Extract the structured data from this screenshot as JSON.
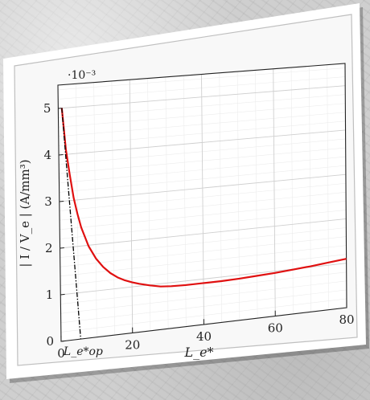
{
  "chart_data": {
    "type": "line",
    "ylabel": "| I / V_e | (A/mm³)",
    "xlabel": "L_e*",
    "y_scale_label": "·10⁻³",
    "x_ticks": [
      0,
      20,
      40,
      60,
      80
    ],
    "y_ticks": [
      0,
      1,
      2,
      3,
      4,
      5
    ],
    "x_extra_tick_label": "L_e*op",
    "xlim": [
      0,
      80
    ],
    "ylim": [
      0,
      5.5
    ],
    "grid": true,
    "series": [
      {
        "color": "#e01010",
        "style": "solid",
        "x": [
          1,
          2,
          3,
          4,
          5,
          6,
          8,
          10,
          12,
          14,
          16,
          18,
          20,
          22,
          25,
          28,
          31,
          35,
          40,
          45,
          50,
          55,
          60,
          65,
          70,
          75,
          80
        ],
        "y": [
          5.0,
          4.1,
          3.55,
          3.05,
          2.7,
          2.4,
          1.98,
          1.7,
          1.5,
          1.35,
          1.24,
          1.16,
          1.1,
          1.05,
          0.99,
          0.94,
          0.92,
          0.91,
          0.91,
          0.91,
          0.92,
          0.94,
          0.96,
          0.99,
          1.02,
          1.06,
          1.1
        ]
      },
      {
        "color": "#000000",
        "style": "dash-dot",
        "x": [
          1,
          5.5
        ],
        "y": [
          5.0,
          0
        ]
      }
    ]
  }
}
